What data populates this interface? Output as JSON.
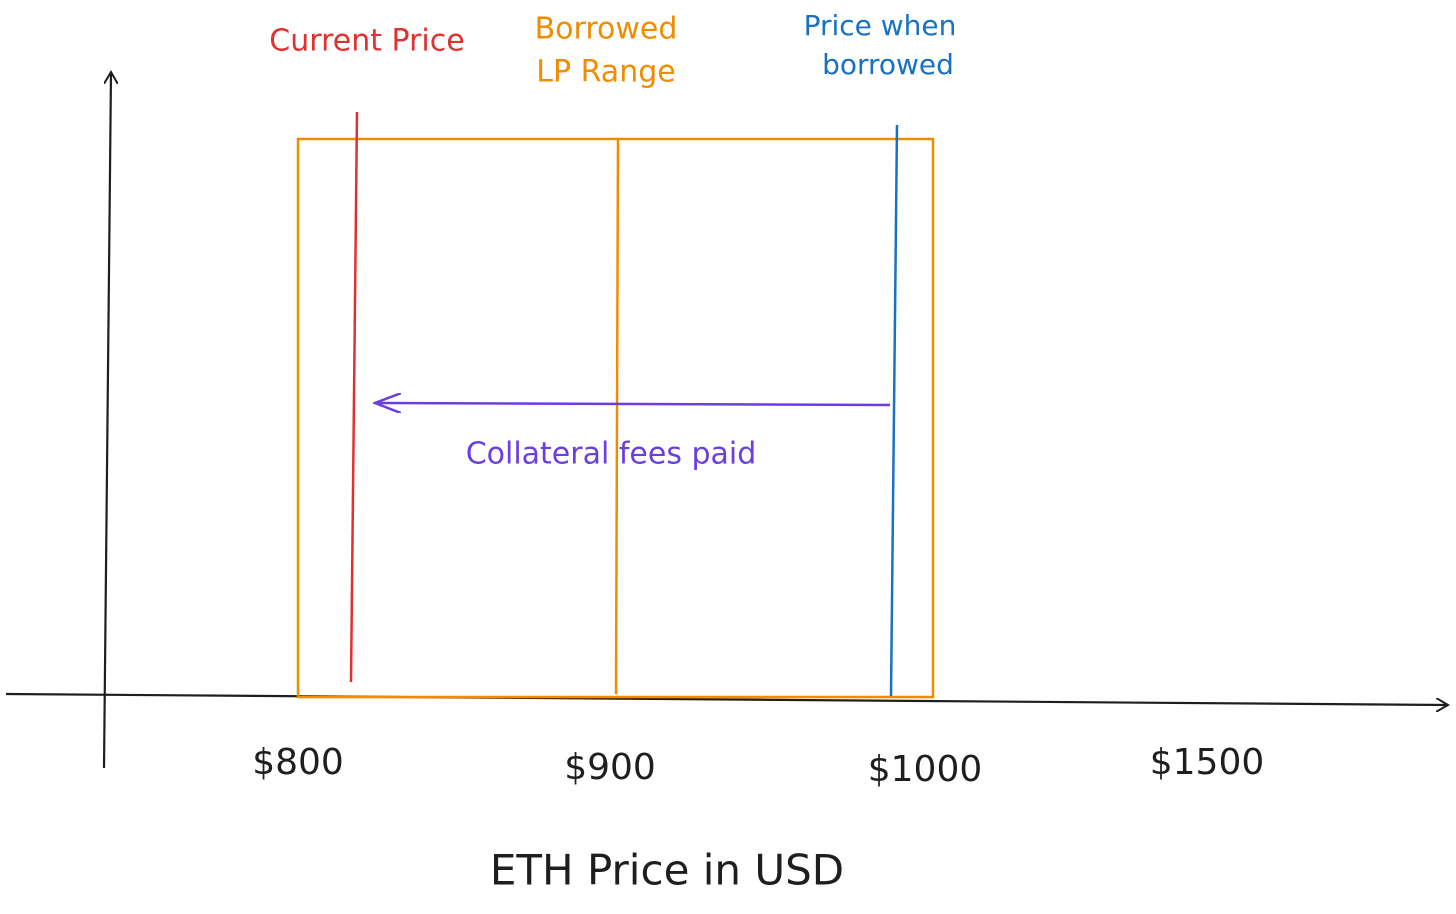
{
  "labels": {
    "current_price": "Current Price",
    "borrowed_range": [
      "Borrowed",
      "LP Range"
    ],
    "price_when_borrowed": [
      "Price when",
      "borrowed"
    ],
    "fees": "Collateral fees paid"
  },
  "x_axis": {
    "ticks": [
      "$800",
      "$900",
      "$1000",
      "$1500"
    ],
    "title": "ETH Price in USD"
  }
}
